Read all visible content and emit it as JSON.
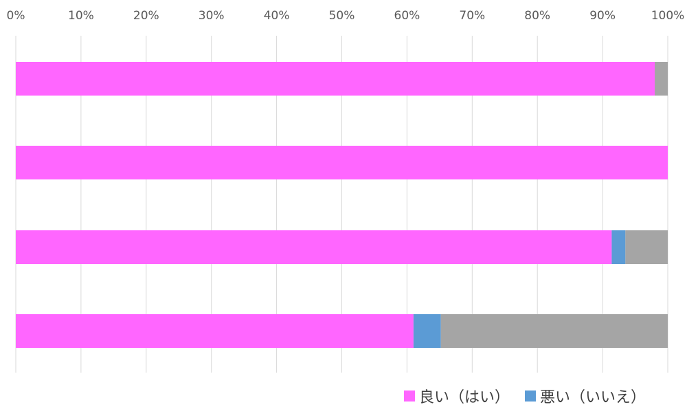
{
  "chart_data": {
    "type": "bar",
    "orientation": "horizontal",
    "stacked": "percent",
    "categories": [
      "",
      "",
      "",
      ""
    ],
    "xlim": [
      0,
      100
    ],
    "x_ticks": [
      "0%",
      "10%",
      "20%",
      "30%",
      "40%",
      "50%",
      "60%",
      "70%",
      "80%",
      "90%",
      "100%"
    ],
    "x_axis_position": "top",
    "grid": "vertical",
    "legend_position": "bottom-right",
    "series": [
      {
        "name": "良い（はい）",
        "color": "#ff66ff",
        "values": [
          98,
          100,
          91.4,
          61
        ]
      },
      {
        "name": "悪い（いいえ）",
        "color": "#5b9bd5",
        "values": [
          0,
          0,
          2.1,
          4.2
        ]
      },
      {
        "color": "#a5a5a5",
        "values": [
          2,
          0,
          6.5,
          34.8
        ]
      }
    ]
  }
}
